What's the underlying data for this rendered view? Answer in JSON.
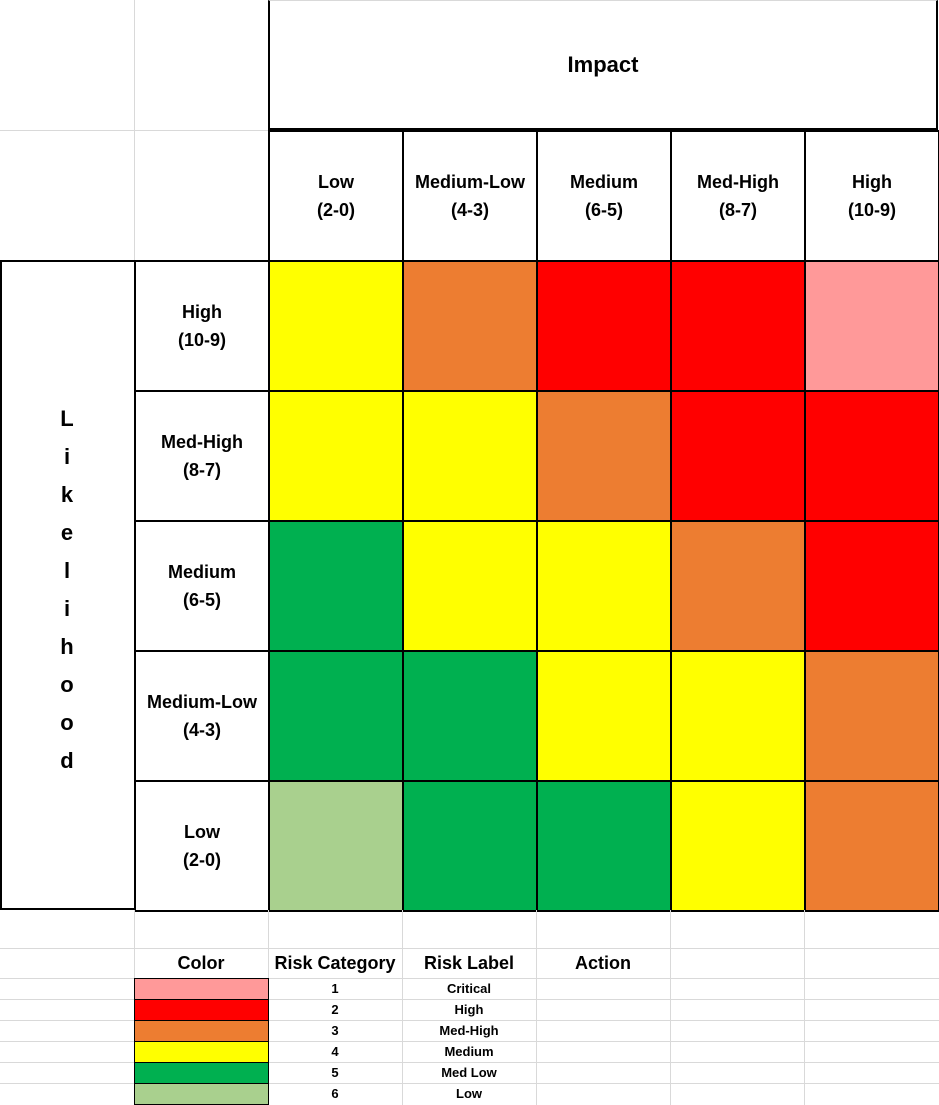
{
  "impact_header": "Impact",
  "likelihood_header": "Likelihood",
  "impact_columns": [
    {
      "name": "Low",
      "range": "(2-0)"
    },
    {
      "name": "Medium-Low",
      "range": "(4-3)"
    },
    {
      "name": "Medium",
      "range": "(6-5)"
    },
    {
      "name": "Med-High",
      "range": "(8-7)"
    },
    {
      "name": "High",
      "range": "(10-9)"
    }
  ],
  "likelihood_rows": [
    {
      "name": "High",
      "range": "(10-9)"
    },
    {
      "name": "Med-High",
      "range": "(8-7)"
    },
    {
      "name": "Medium",
      "range": "(6-5)"
    },
    {
      "name": "Medium-Low",
      "range": "(4-3)"
    },
    {
      "name": "Low",
      "range": "(2-0)"
    }
  ],
  "colors": {
    "critical": "#ff9999",
    "high": "#ff0000",
    "med_high": "#ed7d31",
    "medium": "#ffff00",
    "med_low": "#00b050",
    "low": "#a9d08e"
  },
  "matrix": [
    [
      "medium",
      "med_high",
      "high",
      "high",
      "critical"
    ],
    [
      "medium",
      "medium",
      "med_high",
      "high",
      "high"
    ],
    [
      "med_low",
      "medium",
      "medium",
      "med_high",
      "high"
    ],
    [
      "med_low",
      "med_low",
      "medium",
      "medium",
      "med_high"
    ],
    [
      "low",
      "med_low",
      "med_low",
      "medium",
      "med_high"
    ]
  ],
  "legend": {
    "headers": {
      "color": "Color",
      "category": "Risk Category",
      "label": "Risk Label",
      "action": "Action"
    },
    "rows": [
      {
        "color_key": "critical",
        "category": "1",
        "label": "Critical"
      },
      {
        "color_key": "high",
        "category": "2",
        "label": "High"
      },
      {
        "color_key": "med_high",
        "category": "3",
        "label": "Med-High"
      },
      {
        "color_key": "medium",
        "category": "4",
        "label": "Medium"
      },
      {
        "color_key": "med_low",
        "category": "5",
        "label": "Med Low"
      },
      {
        "color_key": "low",
        "category": "6",
        "label": "Low"
      }
    ]
  }
}
